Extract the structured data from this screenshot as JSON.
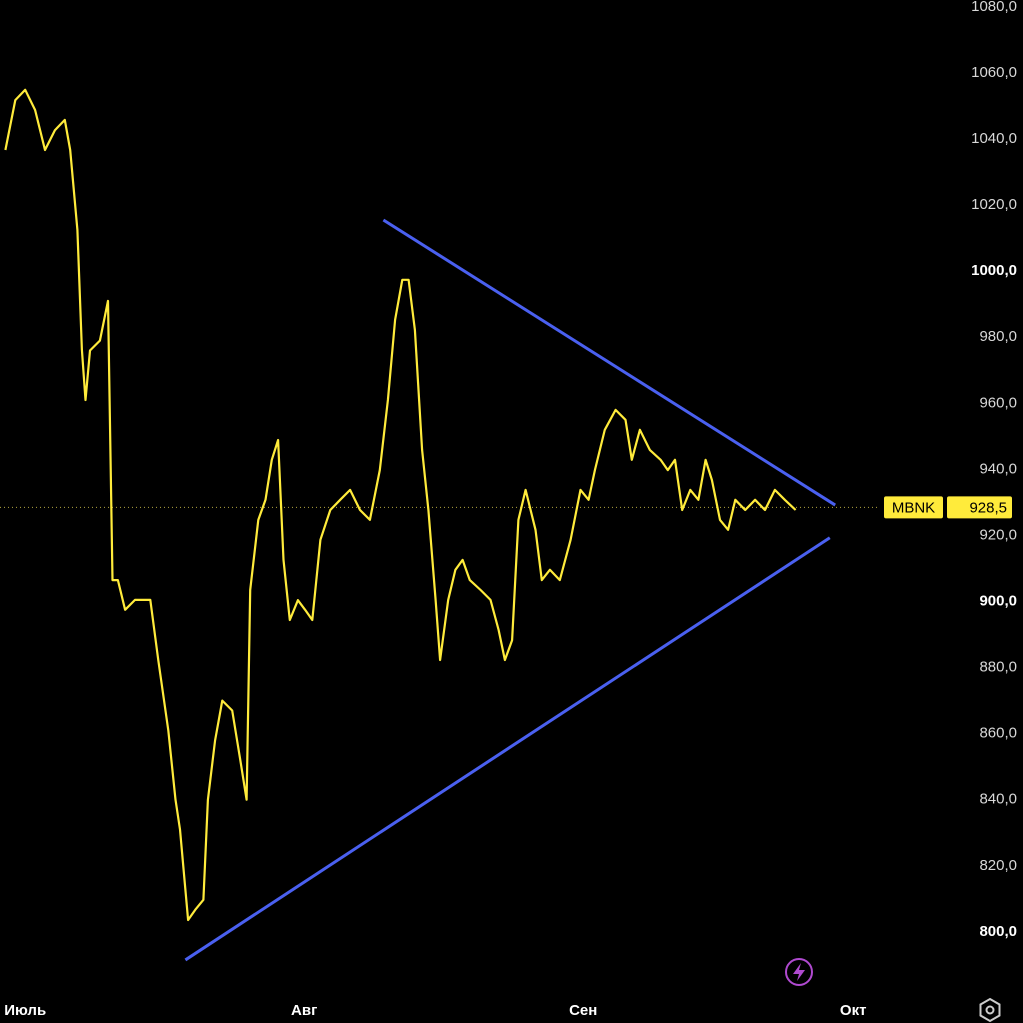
{
  "chart_data": {
    "type": "line",
    "x": [
      -2.2,
      -1.1,
      0,
      1.1,
      2.2,
      3.3,
      4.4,
      5,
      5.8,
      6.3,
      6.7,
      7.2,
      8.3,
      9.2,
      9.7,
      10.3,
      11.1,
      12.2,
      13.9,
      14.8,
      15.9,
      16.7,
      17.2,
      18.1,
      18.9,
      19.8,
      20.3,
      21.1,
      21.9,
      23,
      23.9,
      24.6,
      25,
      25.9,
      26.7,
      27.4,
      28.1,
      28.7,
      29.4,
      30.3,
      31.1,
      31.9,
      32.8,
      33.9,
      35,
      36.1,
      37.2,
      38.3,
      39.4,
      40.3,
      41.1,
      41.9,
      42.6,
      43.3,
      44.1,
      44.8,
      45.6,
      46.1,
      47,
      47.8,
      48.6,
      49.4,
      50.6,
      51.7,
      52.6,
      53.3,
      54.1,
      54.8,
      55.6,
      56.7,
      57.4,
      58.3,
      59.4,
      60.6,
      61.7,
      62.6,
      63.3,
      64.4,
      65.6,
      66.7,
      67.4,
      68.3,
      69.4,
      70.6,
      71.4,
      72.2,
      73,
      73.9,
      74.8,
      75.6,
      76.3,
      77.2,
      78.1,
      78.9,
      80,
      81.1,
      82.2,
      83.3,
      84.4,
      85.6
    ],
    "series": [
      {
        "name": "MBNK",
        "color": "#ffeb3b",
        "values": [
          1036.7,
          1051.8,
          1054.9,
          1048.8,
          1036.7,
          1042.7,
          1045.8,
          1036.7,
          1012.5,
          976.2,
          961,
          976,
          979,
          991,
          906.5,
          906.5,
          897.5,
          900.5,
          900.5,
          882,
          861,
          840,
          831,
          803.6,
          806.7,
          809.7,
          840,
          858,
          870,
          867,
          852,
          840,
          903.5,
          924.7,
          930.8,
          942.9,
          948.9,
          912.6,
          894.4,
          900.4,
          897.5,
          894.4,
          918.7,
          927.7,
          930.8,
          933.8,
          927.7,
          924.7,
          939.8,
          961,
          985.3,
          997.4,
          997.4,
          982.2,
          945.9,
          927.7,
          900.5,
          882.3,
          900.5,
          909.6,
          912.6,
          906.5,
          903.5,
          900.5,
          891.4,
          882.3,
          888.3,
          924.7,
          933.8,
          921.7,
          906.5,
          909.6,
          906.5,
          918.7,
          933.8,
          930.8,
          939.8,
          952,
          958,
          955,
          942.9,
          952,
          945.9,
          942.9,
          939.8,
          942.9,
          927.7,
          933.8,
          930.8,
          942.9,
          936.8,
          924.7,
          921.7,
          930.8,
          927.7,
          930.8,
          927.7,
          933.8,
          930.8,
          927.7
        ]
      }
    ],
    "trendlines": [
      {
        "color": "#4a60f0",
        "x": [
          39.8,
          90
        ],
        "y": [
          1015.5,
          929.2
        ]
      },
      {
        "color": "#4a60f0",
        "x": [
          17.8,
          89.4
        ],
        "y": [
          791.5,
          919.3
        ]
      }
    ],
    "last_value": {
      "value": 928.5,
      "label": "928,5"
    },
    "xlim": [
      -2.8,
      102.2
    ],
    "ylim": [
      782.4,
      1082.1
    ],
    "xticks": [
      {
        "value": 0,
        "label": "Июль"
      },
      {
        "value": 31,
        "label": "Авг"
      },
      {
        "value": 62,
        "label": "Сен"
      },
      {
        "value": 92,
        "label": "Окт"
      }
    ],
    "yticks": [
      {
        "value": 800,
        "label": "800,0"
      },
      {
        "value": 820,
        "label": "820,0"
      },
      {
        "value": 840,
        "label": "840,0"
      },
      {
        "value": 860,
        "label": "860,0"
      },
      {
        "value": 880,
        "label": "880,0"
      },
      {
        "value": 900,
        "label": "900,0"
      },
      {
        "value": 920,
        "label": "920,0"
      },
      {
        "value": 940,
        "label": "940,0"
      },
      {
        "value": 960,
        "label": "960,0"
      },
      {
        "value": 980,
        "label": "980,0"
      },
      {
        "value": 1000,
        "label": "1000,0"
      },
      {
        "value": 1020,
        "label": "1020,0"
      },
      {
        "value": 1040,
        "label": "1040,0"
      },
      {
        "value": 1060,
        "label": "1060,0"
      },
      {
        "value": 1080,
        "label": "1080,0"
      }
    ]
  }
}
